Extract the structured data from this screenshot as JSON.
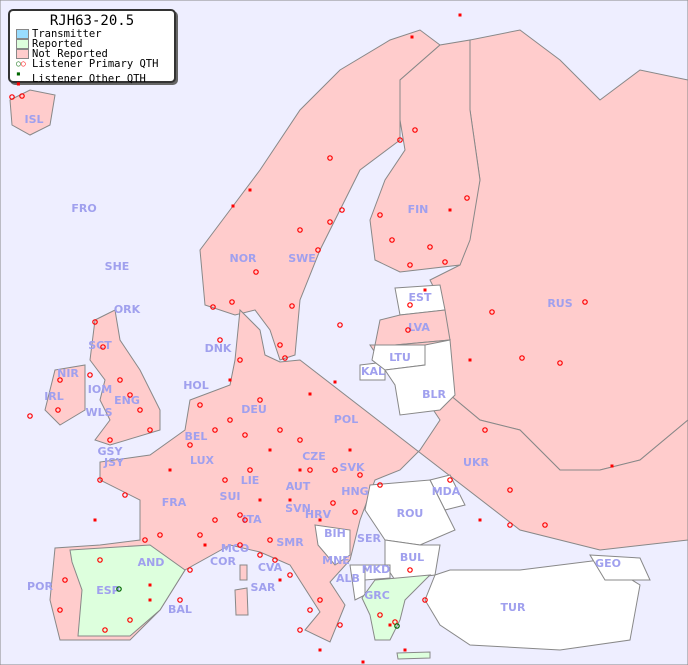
{
  "legend": {
    "title": "RJH63-20.5",
    "items": [
      {
        "label": "Transmitter",
        "color": "#99ddff"
      },
      {
        "label": "Reported",
        "color": "#ddffdd"
      },
      {
        "label": "Not Reported",
        "color": "#ffcccc"
      },
      {
        "label": "Listener Primary QTH",
        "symbol": "circle",
        "colors": [
          "#006600",
          "#ff0000"
        ]
      },
      {
        "label": "Listener Other QTH",
        "symbol": "square",
        "colors": [
          "#006600",
          "#ff0000"
        ]
      }
    ]
  },
  "colors": {
    "sea": "#eeeeff",
    "not_reported": "#ffcccc",
    "reported": "#ddffdd",
    "no_data": "#ffffff",
    "listener": "#ff0000",
    "listener_reported": "#006600"
  },
  "countries": {
    "ISL": "not_reported",
    "FRO": "not_reported",
    "SHE": "not_reported",
    "ORK": "not_reported",
    "NOR": "not_reported",
    "SWE": "not_reported",
    "FIN": "not_reported",
    "RUS": "not_reported",
    "EST": "no_data",
    "LVA": "not_reported",
    "LTU": "no_data",
    "KAL": "no_data",
    "BLR": "no_data",
    "DNK": "not_reported",
    "HOL": "not_reported",
    "DEU": "not_reported",
    "POL": "not_reported",
    "UKR": "not_reported",
    "IRL": "not_reported",
    "IOM": "not_reported",
    "WLS": "not_reported",
    "ENG": "not_reported",
    "SCT": "not_reported",
    "NIR": "not_reported",
    "GSY": "not_reported",
    "JSY": "not_reported",
    "BEL": "not_reported",
    "LUX": "not_reported",
    "CZE": "not_reported",
    "SVK": "not_reported",
    "FRA": "not_reported",
    "SUI": "not_reported",
    "LIE": "not_reported",
    "AUT": "not_reported",
    "HNG": "not_reported",
    "MDA": "no_data",
    "SVN": "not_reported",
    "HRV": "not_reported",
    "ROU": "no_data",
    "ITA": "not_reported",
    "BIH": "no_data",
    "SER": "not_reported",
    "MCO": "not_reported",
    "COR": "not_reported",
    "SMR": "not_reported",
    "CVA": "not_reported",
    "MNE": "not_reported",
    "BUL": "no_data",
    "GEO": "no_data",
    "AND": "not_reported",
    "ALB": "no_data",
    "MKD": "no_data",
    "POR": "not_reported",
    "ESP": "reported",
    "SAR": "not_reported",
    "BAL": "not_reported",
    "GRC": "reported",
    "TUR": "no_data"
  }
}
